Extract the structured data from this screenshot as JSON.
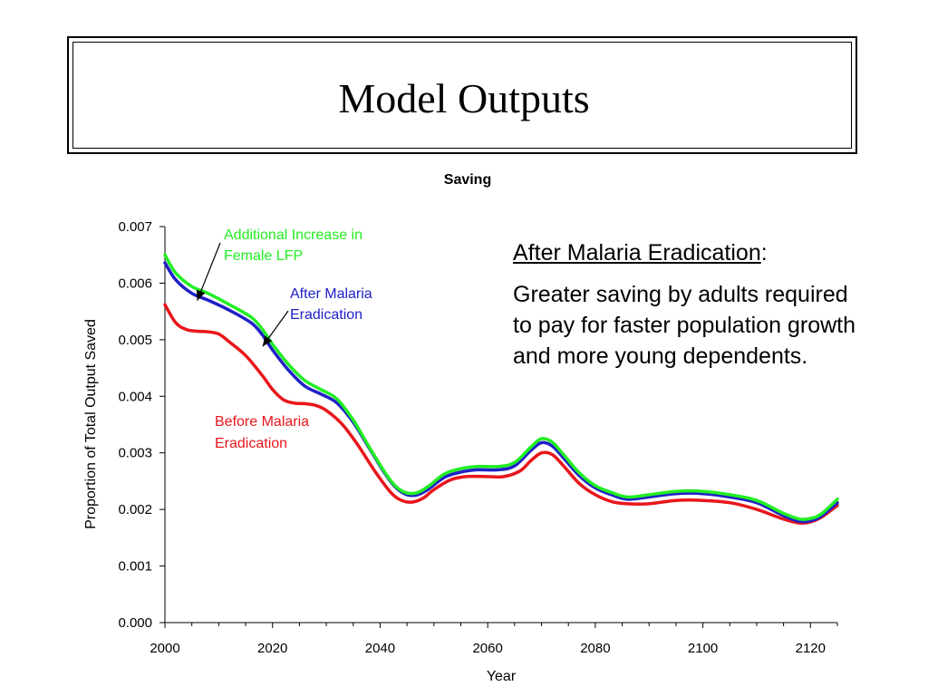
{
  "slide": {
    "title": "Model Outputs"
  },
  "annotation": {
    "heading": "After Malaria Eradication",
    "heading_suffix": ":",
    "body": "Greater saving by adults required to pay for faster population growth and more young dependents."
  },
  "chart_data": {
    "type": "line",
    "title": "Saving",
    "xlabel": "Year",
    "ylabel": "Proportion of Total Output Saved",
    "xlim": [
      2000,
      2125
    ],
    "ylim": [
      0,
      0.007
    ],
    "xticks": [
      "2000",
      "2020",
      "2040",
      "2060",
      "2080",
      "2100",
      "2120"
    ],
    "yticks": [
      "0.000",
      "0.001",
      "0.002",
      "0.003",
      "0.004",
      "0.005",
      "0.006",
      "0.007"
    ],
    "grid": false,
    "series": [
      {
        "name": "Before Malaria Eradication",
        "color": "#e8161b",
        "x": [
          2000,
          2002,
          2004,
          2006,
          2008,
          2010,
          2012,
          2015,
          2018,
          2020,
          2022,
          2024,
          2026,
          2028,
          2030,
          2033,
          2036,
          2039,
          2042,
          2044,
          2046,
          2048,
          2050,
          2053,
          2056,
          2060,
          2063,
          2066,
          2068,
          2070,
          2072,
          2074,
          2077,
          2080,
          2083,
          2086,
          2090,
          2095,
          2100,
          2105,
          2110,
          2115,
          2118,
          2120,
          2122,
          2125
        ],
        "y": [
          0.00562,
          0.0053,
          0.00518,
          0.00515,
          0.00514,
          0.0051,
          0.00496,
          0.00472,
          0.00438,
          0.00412,
          0.00394,
          0.00388,
          0.00387,
          0.00384,
          0.00375,
          0.0035,
          0.00312,
          0.00268,
          0.0023,
          0.00216,
          0.00213,
          0.0022,
          0.00235,
          0.00252,
          0.00258,
          0.00258,
          0.00258,
          0.00268,
          0.00286,
          0.003,
          0.00297,
          0.00278,
          0.00246,
          0.00226,
          0.00214,
          0.0021,
          0.0021,
          0.00216,
          0.00216,
          0.00212,
          0.002,
          0.00183,
          0.00176,
          0.00178,
          0.00186,
          0.00207
        ]
      },
      {
        "name": "After Malaria Eradication",
        "color": "#2020c8",
        "x": [
          2000,
          2002,
          2005,
          2008,
          2012,
          2016,
          2018,
          2020,
          2023,
          2026,
          2029,
          2032,
          2035,
          2038,
          2041,
          2043,
          2045,
          2047,
          2049,
          2052,
          2055,
          2058,
          2062,
          2065,
          2068,
          2070,
          2072,
          2074,
          2077,
          2080,
          2083,
          2086,
          2090,
          2095,
          2100,
          2105,
          2110,
          2115,
          2118,
          2120,
          2122,
          2125
        ],
        "y": [
          0.00636,
          0.00606,
          0.00582,
          0.0057,
          0.00552,
          0.0053,
          0.0051,
          0.00482,
          0.00446,
          0.00418,
          0.00404,
          0.00388,
          0.00354,
          0.00308,
          0.00262,
          0.00238,
          0.00226,
          0.00226,
          0.00236,
          0.00257,
          0.00266,
          0.0027,
          0.0027,
          0.00277,
          0.00304,
          0.00318,
          0.00312,
          0.00292,
          0.0026,
          0.00238,
          0.00226,
          0.00218,
          0.00222,
          0.00228,
          0.00228,
          0.00222,
          0.00212,
          0.00189,
          0.00179,
          0.0018,
          0.00188,
          0.00212
        ]
      },
      {
        "name": "Additional Increase in Female LFP",
        "color": "#22ee22",
        "x": [
          2000,
          2002,
          2005,
          2008,
          2012,
          2016,
          2018,
          2020,
          2023,
          2026,
          2029,
          2032,
          2035,
          2038,
          2041,
          2043,
          2045,
          2047,
          2049,
          2052,
          2055,
          2058,
          2062,
          2065,
          2068,
          2070,
          2072,
          2074,
          2077,
          2080,
          2083,
          2086,
          2090,
          2095,
          2100,
          2105,
          2110,
          2115,
          2118,
          2120,
          2122,
          2125
        ],
        "y": [
          0.0065,
          0.00618,
          0.00594,
          0.00582,
          0.00562,
          0.0054,
          0.0052,
          0.00492,
          0.00456,
          0.00428,
          0.00412,
          0.00395,
          0.00358,
          0.0031,
          0.00264,
          0.0024,
          0.00229,
          0.0023,
          0.00241,
          0.00263,
          0.00272,
          0.00276,
          0.00276,
          0.00283,
          0.0031,
          0.00325,
          0.00319,
          0.00298,
          0.00265,
          0.00242,
          0.0023,
          0.00222,
          0.00226,
          0.00232,
          0.00232,
          0.00226,
          0.00216,
          0.00193,
          0.00183,
          0.00184,
          0.00192,
          0.00218
        ]
      }
    ],
    "annotations": [
      {
        "text_lines": [
          "Additional Increase in",
          "Female LFP"
        ],
        "color": "#22ee22",
        "points_to": {
          "x": 2006,
          "y": 0.00582
        }
      },
      {
        "text_lines": [
          "After Malaria",
          "Eradication"
        ],
        "color": "#2020c8",
        "points_to": {
          "x": 2018,
          "y": 0.00493
        }
      },
      {
        "text_lines": [
          "Before Malaria",
          "Eradication"
        ],
        "color": "#e8161b"
      }
    ]
  }
}
